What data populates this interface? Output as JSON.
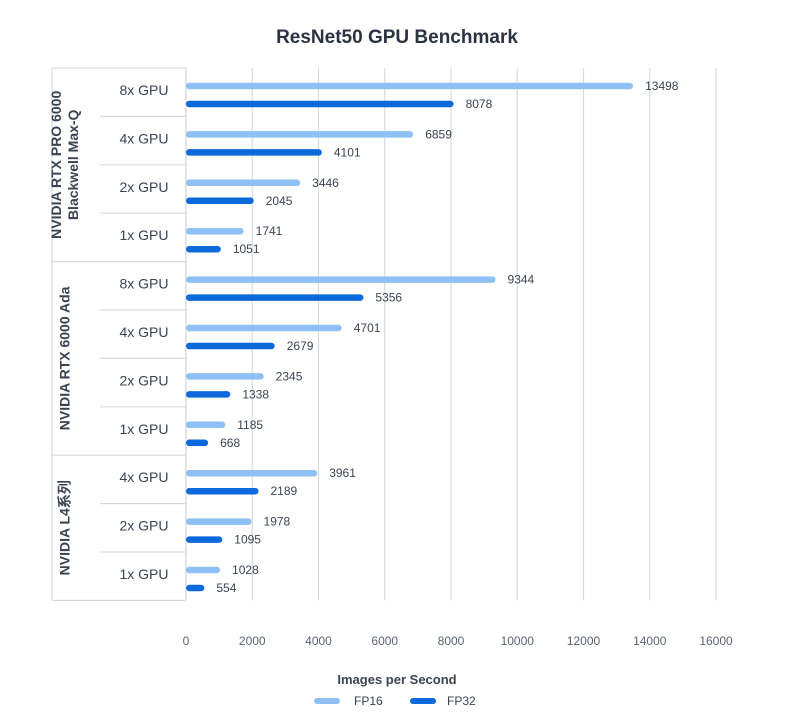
{
  "chart_data": {
    "type": "bar",
    "orientation": "horizontal",
    "title": "ResNet50 GPU Benchmark",
    "xlabel": "Images per Second",
    "ylabel": "",
    "xlim": [
      0,
      16000
    ],
    "x_ticks": [
      0,
      2000,
      4000,
      6000,
      8000,
      10000,
      12000,
      14000,
      16000
    ],
    "legend_position": "bottom",
    "grid": true,
    "colors": {
      "FP16": "#8ec0f5",
      "FP32": "#0c69dc",
      "grid": "#d5dae1",
      "text": "#3b4252"
    },
    "series_names": [
      "FP16",
      "FP32"
    ],
    "groups": [
      {
        "name": "NVIDIA RTX PRO 6000 Blackwell Max-Q",
        "label_lines": [
          "NVIDIA RTX PRO 6000",
          "Blackwell Max-Q"
        ],
        "categories": [
          "8x GPU",
          "4x GPU",
          "2x GPU",
          "1x GPU"
        ],
        "FP16": [
          13498,
          6859,
          3446,
          1741
        ],
        "FP32": [
          8078,
          4101,
          2045,
          1051
        ]
      },
      {
        "name": "NVIDIA RTX 6000 Ada",
        "label_lines": [
          "NVIDIA RTX 6000 Ada"
        ],
        "categories": [
          "8x GPU",
          "4x GPU",
          "2x GPU",
          "1x GPU"
        ],
        "FP16": [
          9344,
          4701,
          2345,
          1185
        ],
        "FP32": [
          5356,
          2679,
          1338,
          668
        ]
      },
      {
        "name": "NVIDIA L4系列",
        "label_lines": [
          "NVIDIA L4系列"
        ],
        "categories": [
          "4x GPU",
          "2x GPU",
          "1x GPU"
        ],
        "FP16": [
          3961,
          1978,
          1028
        ],
        "FP32": [
          2189,
          1095,
          554
        ]
      }
    ]
  }
}
